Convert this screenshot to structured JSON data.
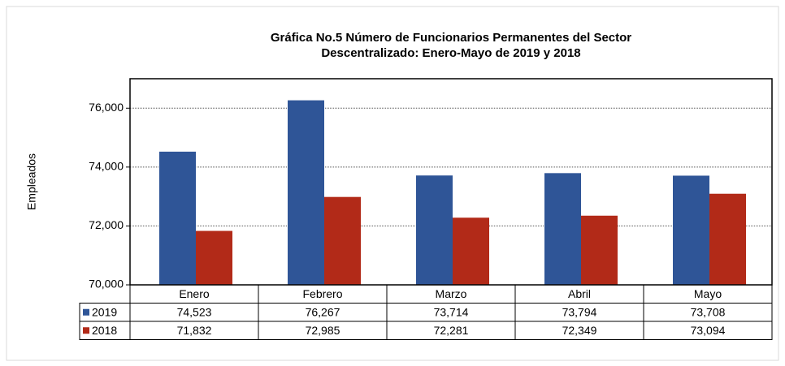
{
  "chart_data": {
    "type": "bar",
    "title": "Gráfica No.5 Número de Funcionarios Permanentes del Sector",
    "subtitle": "Descentralizado: Enero-Mayo  de 2019 y 2018",
    "y_label": "Empleados",
    "categories": [
      "Enero",
      "Febrero",
      "Marzo",
      "Abril",
      "Mayo"
    ],
    "series": [
      {
        "name": "2019",
        "color": "#2f5597",
        "values": [
          74523,
          76267,
          73714,
          73794,
          73708
        ],
        "value_labels": [
          "74,523",
          "76,267",
          "73,714",
          "73,794",
          "73,708"
        ]
      },
      {
        "name": "2018",
        "color": "#b22a18",
        "values": [
          71832,
          72985,
          72281,
          72349,
          73094
        ],
        "value_labels": [
          "71,832",
          "72,985",
          "72,281",
          "72,349",
          "73,094"
        ]
      }
    ],
    "ylim": [
      70000,
      77000
    ],
    "yticks": [
      {
        "value": 70000,
        "label": "70,000"
      },
      {
        "value": 72000,
        "label": "72,000"
      },
      {
        "value": 74000,
        "label": "74,000"
      },
      {
        "value": 76000,
        "label": "76,000"
      }
    ],
    "grid": true
  }
}
